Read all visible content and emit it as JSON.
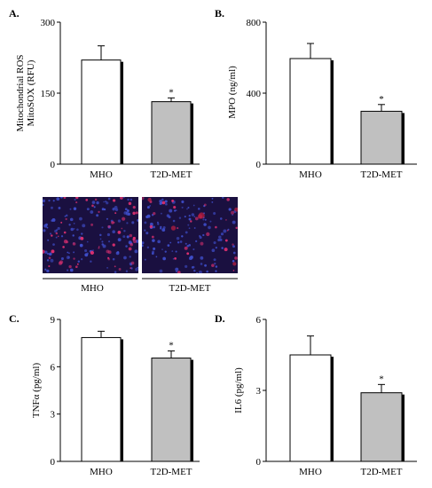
{
  "chart_data": [
    {
      "panel_label": "A.",
      "type": "bar",
      "categories": [
        "MHO",
        "T2D-MET"
      ],
      "values": [
        220,
        132
      ],
      "errors": [
        30,
        8
      ],
      "significance": [
        "",
        "*"
      ],
      "ylabel_line1": "Mitochondrial ROS",
      "ylabel_line2": "MitoSOX (RFU)",
      "ylim": [
        0,
        300
      ],
      "yticks": [
        "0",
        "150",
        "300"
      ],
      "yticks_values": [
        0,
        150,
        300
      ],
      "bar_colors": [
        "#ffffff",
        "#c0c0c0"
      ]
    },
    {
      "panel_label": "B.",
      "type": "bar",
      "categories": [
        "MHO",
        "T2D-MET"
      ],
      "values": [
        595,
        298
      ],
      "errors": [
        85,
        38
      ],
      "significance": [
        "",
        "*"
      ],
      "ylabel_line1": "MPO (ng/ml)",
      "ylabel_line2": "",
      "ylim": [
        0,
        800
      ],
      "yticks": [
        "0",
        "400",
        "800"
      ],
      "yticks_values": [
        0,
        400,
        800
      ],
      "bar_colors": [
        "#ffffff",
        "#c0c0c0"
      ]
    },
    {
      "panel_label": "C.",
      "type": "bar",
      "categories": [
        "MHO",
        "T2D-MET"
      ],
      "values": [
        7.85,
        6.55
      ],
      "errors": [
        0.4,
        0.45
      ],
      "significance": [
        "",
        "*"
      ],
      "ylabel_line1": "TNFα (pg/ml)",
      "ylabel_line2": "",
      "ylim": [
        0,
        9
      ],
      "yticks": [
        "0",
        "3",
        "6",
        "9"
      ],
      "yticks_values": [
        0,
        3,
        6,
        9
      ],
      "bar_colors": [
        "#ffffff",
        "#c0c0c0"
      ]
    },
    {
      "panel_label": "D.",
      "type": "bar",
      "categories": [
        "MHO",
        "T2D-MET"
      ],
      "values": [
        4.5,
        2.9
      ],
      "errors": [
        0.8,
        0.35
      ],
      "significance": [
        "",
        "*"
      ],
      "ylabel_line1": "IL6 (pg/ml)",
      "ylabel_line2": "",
      "ylim": [
        0,
        6
      ],
      "yticks": [
        "0",
        "3",
        "6"
      ],
      "yticks_values": [
        0,
        3,
        6
      ],
      "bar_colors": [
        "#ffffff",
        "#c0c0c0"
      ]
    }
  ],
  "micrographs": {
    "labels": [
      "MHO",
      "T2D-MET"
    ],
    "background": "#1a1040",
    "nuclei_color": "#4050d0",
    "ros_color": "#e03070"
  }
}
